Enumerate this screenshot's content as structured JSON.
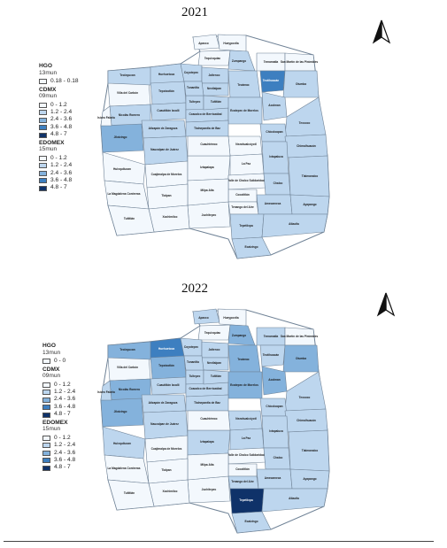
{
  "colors": {
    "c0": "#f3f8fd",
    "c1": "#bdd6ee",
    "c2": "#84b2dc",
    "c3": "#3d7fc0",
    "c4": "#0f3269",
    "border": "#6f8296"
  },
  "maps": [
    {
      "id": "2021",
      "title": "2021",
      "legend": [
        {
          "group": "HGO",
          "sub": "13mun",
          "items": [
            {
              "label": "0.18 - 0.18",
              "color": "c0"
            }
          ]
        },
        {
          "group": "CDMX",
          "sub": "09mun",
          "items": [
            {
              "label": "0 - 1.2",
              "color": "c0"
            },
            {
              "label": "1.2 - 2.4",
              "color": "c1"
            },
            {
              "label": "2.4 - 3.6",
              "color": "c2"
            },
            {
              "label": "3.6 - 4.8",
              "color": "c3"
            },
            {
              "label": "4.8 - 7",
              "color": "c4"
            }
          ]
        },
        {
          "group": "EDOMEX",
          "sub": "15mun",
          "items": [
            {
              "label": "0 - 1.2",
              "color": "c0"
            },
            {
              "label": "1.2 - 2.4",
              "color": "c1"
            },
            {
              "label": "2.4 - 3.6",
              "color": "c2"
            },
            {
              "label": "3.6 - 4.8",
              "color": "c3"
            },
            {
              "label": "4.8 - 7",
              "color": "c4"
            }
          ]
        }
      ],
      "municipalities": [
        {
          "label": "Apaxco",
          "color": "c0"
        },
        {
          "label": "Hueypoxtla",
          "color": "c0"
        },
        {
          "label": "Tequixquiac",
          "color": "c0"
        },
        {
          "label": "Zumpango",
          "color": "c1"
        },
        {
          "label": "Huehuetoca",
          "color": "c1"
        },
        {
          "label": "Coyotepec",
          "color": "c1"
        },
        {
          "label": "Villa del Carbón",
          "color": "c0"
        },
        {
          "label": "Tepotzotlán",
          "color": "c1"
        },
        {
          "label": "Jaltenco",
          "color": "c1"
        },
        {
          "label": "Nextlalpan",
          "color": "c1"
        },
        {
          "label": "Tecámac",
          "color": "c1"
        },
        {
          "label": "Temamatla",
          "color": "c0"
        },
        {
          "label": "San Martín de las Pirámides",
          "color": "c0"
        },
        {
          "label": "Teotihuacán",
          "color": "c3"
        },
        {
          "label": "Otumba",
          "color": "c1"
        },
        {
          "label": "Nicolás Romero",
          "color": "c1"
        },
        {
          "label": "Cuautitlán Izcalli",
          "color": "c1"
        },
        {
          "label": "Tultepec",
          "color": "c1"
        },
        {
          "label": "Coacalco de Berriozábal",
          "color": "c1"
        },
        {
          "label": "Tultitlán",
          "color": "c1"
        },
        {
          "label": "Ecatepec de Morelos",
          "color": "c1"
        },
        {
          "label": "Acolman",
          "color": "c1"
        },
        {
          "label": "Jilotzingo",
          "color": "c2"
        },
        {
          "label": "Atizapán de Zaragoza",
          "color": "c1"
        },
        {
          "label": "Tlalnepantla de Baz",
          "color": "c1"
        },
        {
          "label": "Isidro Fabela",
          "color": "c0"
        },
        {
          "label": "Texcoco",
          "color": "c1"
        },
        {
          "label": "Naucalpan de Juárez",
          "color": "c1"
        },
        {
          "label": "Nezahualcóyotl",
          "color": "c0"
        },
        {
          "label": "Huixquilucan",
          "color": "c0"
        },
        {
          "label": "Chicoloapan",
          "color": "c1"
        },
        {
          "label": "Chimalhuacán",
          "color": "c1"
        },
        {
          "label": "Cuajimalpa de Morelos",
          "color": "c0"
        },
        {
          "label": "Iztapalapa",
          "color": "c0"
        },
        {
          "label": "La Paz",
          "color": "c0"
        },
        {
          "label": "Ixtapaluca",
          "color": "c1"
        },
        {
          "label": "Valle de Chalco Solidaridad",
          "color": "c0"
        },
        {
          "label": "Chalco",
          "color": "c1"
        },
        {
          "label": "Tlalmanalco",
          "color": "c1"
        },
        {
          "label": "Cocotitlán",
          "color": "c0"
        },
        {
          "label": "Tenango del Aire",
          "color": "c0"
        },
        {
          "label": "Amecameca",
          "color": "c1"
        },
        {
          "label": "Ayapango",
          "color": "c1"
        },
        {
          "label": "Juchitepec",
          "color": "c0"
        },
        {
          "label": "Tepetlixpa",
          "color": "c1"
        },
        {
          "label": "Atlautla",
          "color": "c1"
        },
        {
          "label": "Ecatzingo",
          "color": "c1"
        },
        {
          "label": "Milpa Alta",
          "color": "c0"
        },
        {
          "label": "Tlalpan",
          "color": "c0"
        },
        {
          "label": "Xochimilco",
          "color": "c0"
        },
        {
          "label": "La Magdalena Contreras",
          "color": "c0"
        },
        {
          "label": "Cuauhtémoc",
          "color": "c0"
        },
        {
          "label": "Tultitlán",
          "color": "c0"
        },
        {
          "label": "Teoloyucan",
          "color": "c1"
        },
        {
          "label": "Tonanitla",
          "color": "c1"
        }
      ]
    },
    {
      "id": "2022",
      "title": "2022",
      "legend": [
        {
          "group": "HGO",
          "sub": "13mun",
          "items": [
            {
              "label": "0 - 0",
              "color": "c0"
            }
          ]
        },
        {
          "group": "CDMX",
          "sub": "09mun",
          "items": [
            {
              "label": "0 - 1.2",
              "color": "c0"
            },
            {
              "label": "1.2 - 2.4",
              "color": "c1"
            },
            {
              "label": "2.4 - 3.6",
              "color": "c2"
            },
            {
              "label": "3.6 - 4.8",
              "color": "c3"
            },
            {
              "label": "4.8 - 7",
              "color": "c4"
            }
          ]
        },
        {
          "group": "EDOMEX",
          "sub": "15mun",
          "items": [
            {
              "label": "0 - 1.2",
              "color": "c0"
            },
            {
              "label": "1.2 - 2.4",
              "color": "c1"
            },
            {
              "label": "2.4 - 3.6",
              "color": "c2"
            },
            {
              "label": "3.6 - 4.8",
              "color": "c3"
            },
            {
              "label": "4.8 - 7",
              "color": "c4"
            }
          ]
        }
      ],
      "municipalities": [
        {
          "label": "Apaxco",
          "color": "c1"
        },
        {
          "label": "Hueypoxtla",
          "color": "c0"
        },
        {
          "label": "Tequixquiac",
          "color": "c0"
        },
        {
          "label": "Zumpango",
          "color": "c2"
        },
        {
          "label": "Huehuetoca",
          "color": "c3"
        },
        {
          "label": "Coyotepec",
          "color": "c1"
        },
        {
          "label": "Villa del Carbón",
          "color": "c0"
        },
        {
          "label": "Tepotzotlán",
          "color": "c2"
        },
        {
          "label": "Jaltenco",
          "color": "c1"
        },
        {
          "label": "Nextlalpan",
          "color": "c1"
        },
        {
          "label": "Tecámac",
          "color": "c2"
        },
        {
          "label": "Temamatla",
          "color": "c1"
        },
        {
          "label": "San Martín de las Pirámides",
          "color": "c0"
        },
        {
          "label": "Teotihuacán",
          "color": "c1"
        },
        {
          "label": "Otumba",
          "color": "c2"
        },
        {
          "label": "Nicolás Romero",
          "color": "c2"
        },
        {
          "label": "Cuautitlán Izcalli",
          "color": "c1"
        },
        {
          "label": "Tultepec",
          "color": "c1"
        },
        {
          "label": "Coacalco de Berriozábal",
          "color": "c1"
        },
        {
          "label": "Tultitlán",
          "color": "c1"
        },
        {
          "label": "Ecatepec de Morelos",
          "color": "c2"
        },
        {
          "label": "Acolman",
          "color": "c2"
        },
        {
          "label": "Jilotzingo",
          "color": "c2"
        },
        {
          "label": "Atizapán de Zaragoza",
          "color": "c1"
        },
        {
          "label": "Tlalnepantla de Baz",
          "color": "c1"
        },
        {
          "label": "Isidro Fabela",
          "color": "c1"
        },
        {
          "label": "Texcoco",
          "color": "c1"
        },
        {
          "label": "Naucalpan de Juárez",
          "color": "c1"
        },
        {
          "label": "Nezahualcóyotl",
          "color": "c1"
        },
        {
          "label": "Huixquilucan",
          "color": "c1"
        },
        {
          "label": "Chicoloapan",
          "color": "c1"
        },
        {
          "label": "Chimalhuacán",
          "color": "c1"
        },
        {
          "label": "Cuajimalpa de Morelos",
          "color": "c0"
        },
        {
          "label": "Iztapalapa",
          "color": "c1"
        },
        {
          "label": "La Paz",
          "color": "c1"
        },
        {
          "label": "Ixtapaluca",
          "color": "c1"
        },
        {
          "label": "Valle de Chalco Solidaridad",
          "color": "c0"
        },
        {
          "label": "Chalco",
          "color": "c1"
        },
        {
          "label": "Tlalmanalco",
          "color": "c1"
        },
        {
          "label": "Cocotitlán",
          "color": "c0"
        },
        {
          "label": "Tenango del Aire",
          "color": "c1"
        },
        {
          "label": "Amecameca",
          "color": "c1"
        },
        {
          "label": "Ayapango",
          "color": "c1"
        },
        {
          "label": "Juchitepec",
          "color": "c0"
        },
        {
          "label": "Tepetlixpa",
          "color": "c4"
        },
        {
          "label": "Atlautla",
          "color": "c1"
        },
        {
          "label": "Ecatzingo",
          "color": "c1"
        },
        {
          "label": "Milpa Alta",
          "color": "c0"
        },
        {
          "label": "Tlalpan",
          "color": "c0"
        },
        {
          "label": "Xochimilco",
          "color": "c0"
        },
        {
          "label": "La Magdalena Contreras",
          "color": "c0"
        },
        {
          "label": "Cuauhtémoc",
          "color": "c0"
        },
        {
          "label": "Tultitlán",
          "color": "c0"
        },
        {
          "label": "Teoloyucan",
          "color": "c2"
        },
        {
          "label": "Tonanitla",
          "color": "c1"
        }
      ]
    }
  ]
}
